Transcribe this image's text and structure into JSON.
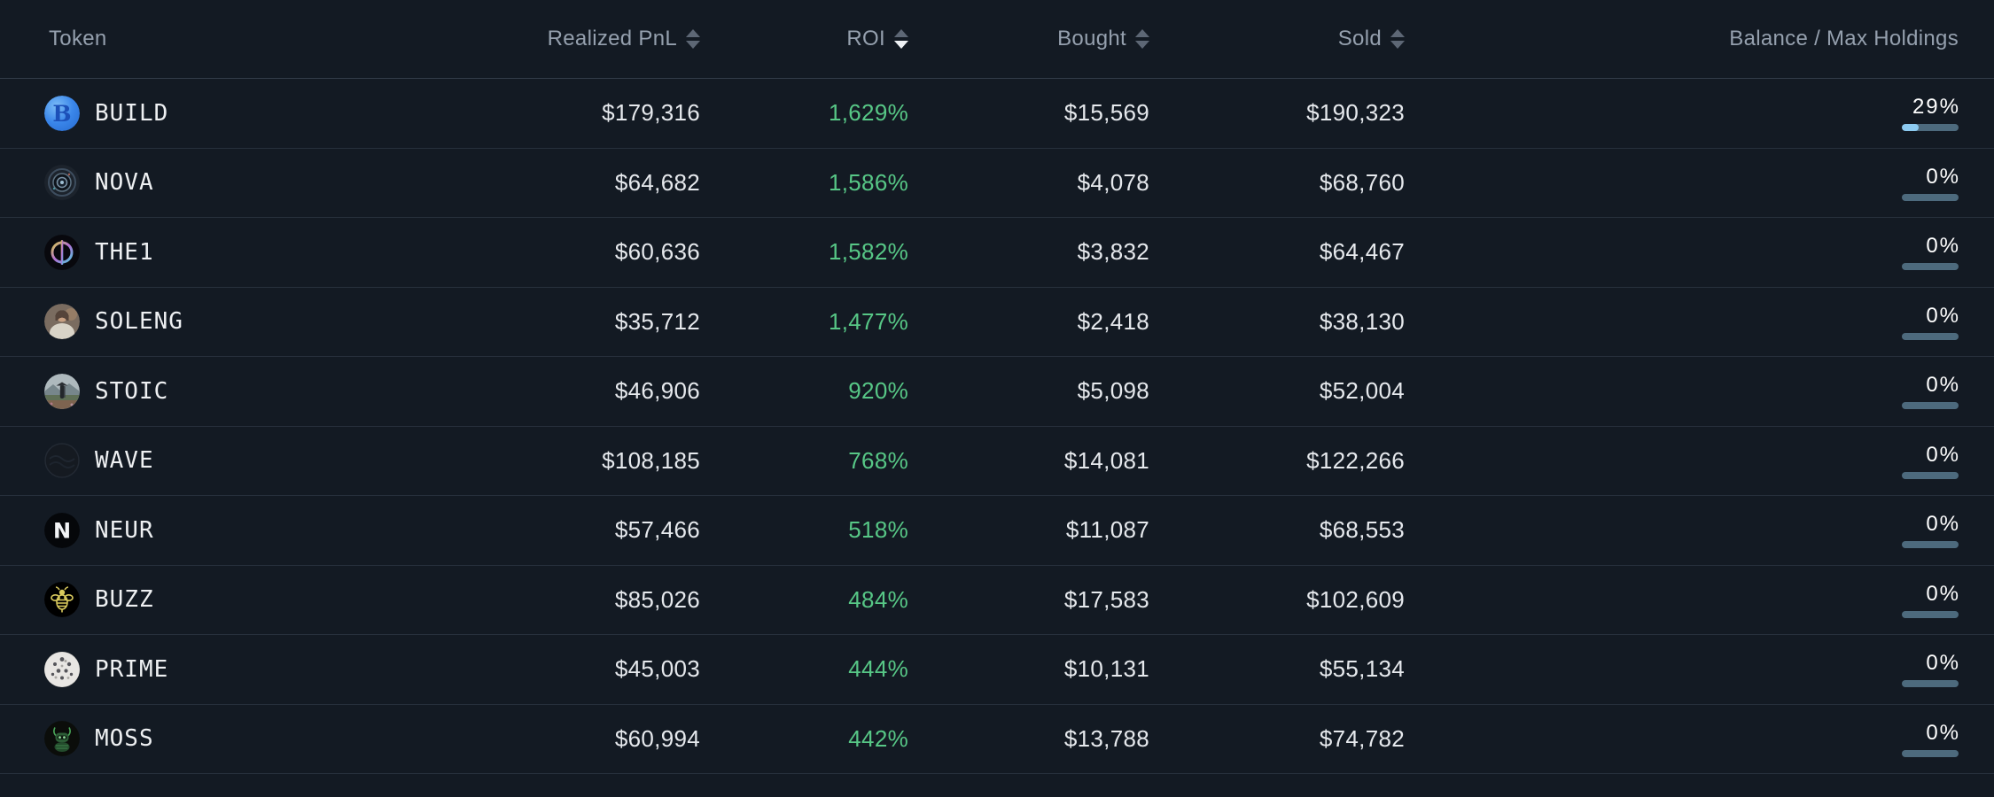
{
  "table": {
    "columns": [
      {
        "label": "Token",
        "sortable": false,
        "sort": "none"
      },
      {
        "label": "Realized PnL",
        "sortable": true,
        "sort": "none"
      },
      {
        "label": "ROI",
        "sortable": true,
        "sort": "desc"
      },
      {
        "label": "Bought",
        "sortable": true,
        "sort": "none"
      },
      {
        "label": "Sold",
        "sortable": true,
        "sort": "none"
      },
      {
        "label": "Balance / Max Holdings",
        "sortable": false,
        "sort": "none"
      }
    ],
    "rows": [
      {
        "token": "BUILD",
        "icon": "build",
        "realized_pnl": "$179,316",
        "roi": "1,629%",
        "bought": "$15,569",
        "sold": "$190,323",
        "balance_pct": "29%",
        "bar_fill_pct": 30
      },
      {
        "token": "NOVA",
        "icon": "nova",
        "realized_pnl": "$64,682",
        "roi": "1,586%",
        "bought": "$4,078",
        "sold": "$68,760",
        "balance_pct": "0%",
        "bar_fill_pct": 0
      },
      {
        "token": "THE1",
        "icon": "the1",
        "realized_pnl": "$60,636",
        "roi": "1,582%",
        "bought": "$3,832",
        "sold": "$64,467",
        "balance_pct": "0%",
        "bar_fill_pct": 0
      },
      {
        "token": "SOLENG",
        "icon": "soleng",
        "realized_pnl": "$35,712",
        "roi": "1,477%",
        "bought": "$2,418",
        "sold": "$38,130",
        "balance_pct": "0%",
        "bar_fill_pct": 0
      },
      {
        "token": "STOIC",
        "icon": "stoic",
        "realized_pnl": "$46,906",
        "roi": "920%",
        "bought": "$5,098",
        "sold": "$52,004",
        "balance_pct": "0%",
        "bar_fill_pct": 0
      },
      {
        "token": "WAVE",
        "icon": "wave",
        "realized_pnl": "$108,185",
        "roi": "768%",
        "bought": "$14,081",
        "sold": "$122,266",
        "balance_pct": "0%",
        "bar_fill_pct": 0
      },
      {
        "token": "NEUR",
        "icon": "neur",
        "realized_pnl": "$57,466",
        "roi": "518%",
        "bought": "$11,087",
        "sold": "$68,553",
        "balance_pct": "0%",
        "bar_fill_pct": 0
      },
      {
        "token": "BUZZ",
        "icon": "buzz",
        "realized_pnl": "$85,026",
        "roi": "484%",
        "bought": "$17,583",
        "sold": "$102,609",
        "balance_pct": "0%",
        "bar_fill_pct": 0
      },
      {
        "token": "PRIME",
        "icon": "prime",
        "realized_pnl": "$45,003",
        "roi": "444%",
        "bought": "$10,131",
        "sold": "$55,134",
        "balance_pct": "0%",
        "bar_fill_pct": 0
      },
      {
        "token": "MOSS",
        "icon": "moss",
        "realized_pnl": "$60,994",
        "roi": "442%",
        "bought": "$13,788",
        "sold": "$74,782",
        "balance_pct": "0%",
        "bar_fill_pct": 0
      }
    ],
    "colors": {
      "background": "#131a23",
      "row_divider": "#27303c",
      "header_divider": "#323c49",
      "header_text": "#95a0ae",
      "value_text": "#e6e9ed",
      "roi_green": "#57c786",
      "bar_track": "#4d6a7d",
      "bar_fill": "#8ccaf0"
    }
  }
}
